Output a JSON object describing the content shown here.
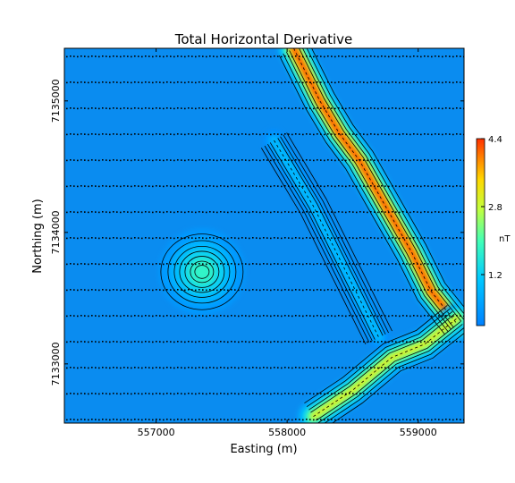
{
  "chart_data": {
    "type": "heatmap",
    "title": "Total Horizontal Derivative",
    "xlabel": "Easting (m)",
    "ylabel": "Northing (m)",
    "xlim": [
      556300,
      559350
    ],
    "ylim": [
      7132550,
      7135400
    ],
    "x_ticks": [
      557000,
      558000,
      559000
    ],
    "y_ticks": [
      7133000,
      7134000,
      7135000
    ],
    "x_tick_labels": [
      "557000",
      "558000",
      "559000"
    ],
    "y_tick_labels": [
      "7133000",
      "7134000",
      "7135000"
    ],
    "colorbar": {
      "label": "nT",
      "min": 0,
      "max": 4.4,
      "ticks": [
        1.2,
        2.8,
        4.4
      ],
      "tick_labels": [
        "1.2",
        "2.8",
        "4.4"
      ],
      "colormap": "jet"
    },
    "contours": "black contour lines over filled colour grid",
    "flight_lines_visible": true,
    "features": [
      {
        "name": "ridge-main",
        "path": [
          [
            558050,
            7135400
          ],
          [
            558250,
            7135000
          ],
          [
            558400,
            7134750
          ],
          [
            558550,
            7134550
          ],
          [
            558750,
            7134200
          ],
          [
            558950,
            7133850
          ],
          [
            559100,
            7133550
          ],
          [
            559300,
            7133300
          ]
        ],
        "peak_nT": 4.4
      },
      {
        "name": "ridge-secondary",
        "path": [
          [
            558200,
            7132600
          ],
          [
            558500,
            7132800
          ],
          [
            558800,
            7133050
          ],
          [
            559050,
            7133150
          ],
          [
            559300,
            7133350
          ]
        ],
        "peak_nT": 3.2
      },
      {
        "name": "anomaly-circle",
        "center": [
          557350,
          7133700
        ],
        "peak_nT": 1.8
      },
      {
        "name": "diagonal-weak",
        "path": [
          [
            557900,
            7134700
          ],
          [
            558200,
            7134200
          ],
          [
            558450,
            7133700
          ],
          [
            558700,
            7133200
          ]
        ],
        "peak_nT": 1.0
      }
    ]
  }
}
